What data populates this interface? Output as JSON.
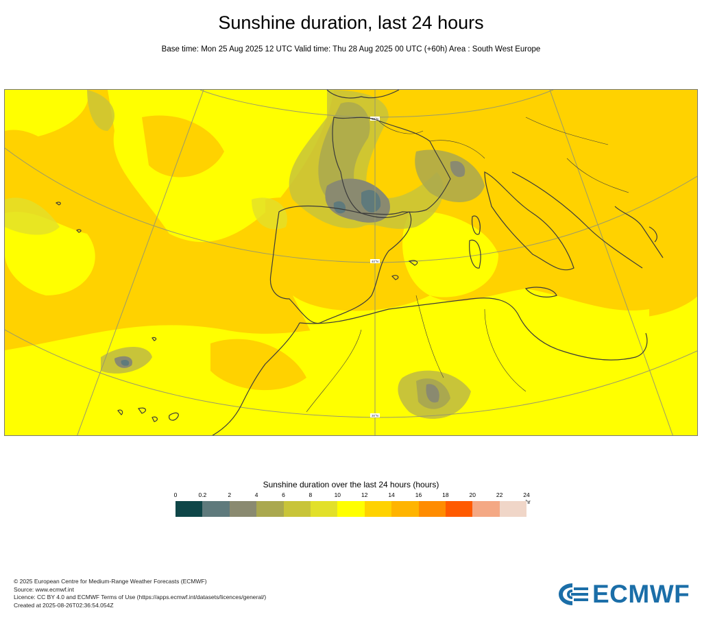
{
  "header": {
    "title": "Sunshine duration, last 24 hours",
    "subtitle": "Base time: Mon 25 Aug 2025 12 UTC Valid time: Thu 28 Aug 2025 00 UTC (+60h) Area : South West Europe"
  },
  "map": {
    "area": "South West Europe",
    "lat_labels": [
      "50°N",
      "40°N",
      "30°N"
    ],
    "coastline_color": "#3a3a3a",
    "graticule_color": "#9a9a6a"
  },
  "legend": {
    "title": "Sunshine duration over the last 24 hours (hours)",
    "unit": "-hr",
    "ticks": [
      "0",
      "0.2",
      "2",
      "4",
      "6",
      "8",
      "10",
      "12",
      "14",
      "16",
      "18",
      "20",
      "22",
      "24"
    ],
    "colors": [
      "#0f4648",
      "#5f7a7c",
      "#8a8a70",
      "#aaa84f",
      "#c8c439",
      "#e2e02a",
      "#ffff00",
      "#ffd200",
      "#ffb400",
      "#ff8c00",
      "#ff5a00",
      "#f4a884",
      "#f0d6c8"
    ]
  },
  "footer": {
    "lines": [
      "© 2025 European Centre for Medium-Range Weather Forecasts (ECMWF)",
      "Source: www.ecmwf.int",
      "Licence: CC BY 4.0 and ECMWF Terms of Use (https://apps.ecmwf.int/datasets/licences/general/)",
      "Created at 2025-08-26T02:36:54.054Z"
    ]
  },
  "logo": {
    "text": "ECMWF",
    "color": "#1b6ea8"
  }
}
